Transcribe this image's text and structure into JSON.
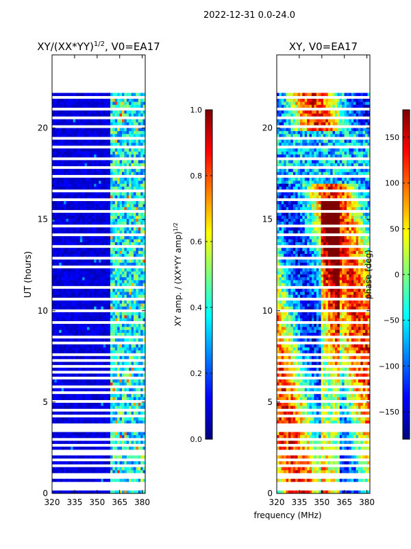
{
  "header": {
    "title": "2022-12-31 0.0-24.0"
  },
  "colors": {
    "background": "#ffffff",
    "nodata": "#ffffff",
    "axis": "#000000",
    "jet_stops": [
      "#00007f",
      "#0000ff",
      "#007fff",
      "#00ffff",
      "#7fff7f",
      "#ffff00",
      "#ff7f00",
      "#ff0000",
      "#7f0000"
    ]
  },
  "x_axis_label": "frequency (MHz)",
  "chart_data": [
    {
      "type": "heatmap",
      "id": "amp",
      "title_main": "XY/(XX*YY)",
      "title_sup": "1/2",
      "title_tail": ", V0=EA17",
      "xlabel": "",
      "ylabel": "UT (hours)",
      "xlim": [
        320,
        382
      ],
      "ylim": [
        0,
        24
      ],
      "xticks": [
        "320",
        "335",
        "350",
        "365",
        "380"
      ],
      "xtick_values": [
        320,
        335,
        350,
        365,
        380
      ],
      "yticks": [
        "0",
        "5",
        "10",
        "15",
        "20"
      ],
      "ytick_values": [
        0,
        5,
        10,
        15,
        20
      ],
      "data_end_hour": 22.0,
      "bright_band_mhz": [
        359,
        382
      ],
      "colorbar": {
        "label": "XY amp. / (XX*YY amp)",
        "label_sup": "1/2",
        "vmin": 0.0,
        "vmax": 1.0,
        "ticks": [
          "0.0",
          "0.2",
          "0.4",
          "0.6",
          "0.8",
          "1.0"
        ],
        "tick_values": [
          0.0,
          0.2,
          0.4,
          0.6,
          0.8,
          1.0
        ]
      }
    },
    {
      "type": "heatmap",
      "id": "phase",
      "title_main": "XY, V0=EA17",
      "title_sup": "",
      "title_tail": "",
      "xlabel": "frequency (MHz)",
      "ylabel": "",
      "xlim": [
        320,
        382
      ],
      "ylim": [
        0,
        24
      ],
      "xticks": [
        "320",
        "335",
        "350",
        "365",
        "380"
      ],
      "xtick_values": [
        320,
        335,
        350,
        365,
        380
      ],
      "yticks": [
        "0",
        "5",
        "10",
        "15",
        "20"
      ],
      "ytick_values": [
        0,
        5,
        10,
        15,
        20
      ],
      "data_end_hour": 22.0,
      "colorbar": {
        "label": "phase (deg)",
        "vmin": -180,
        "vmax": 180,
        "ticks": [
          "−150",
          "−100",
          "−50",
          "0",
          "50",
          "100",
          "150"
        ],
        "tick_values": [
          -150,
          -100,
          -50,
          0,
          50,
          100,
          150
        ]
      }
    }
  ]
}
